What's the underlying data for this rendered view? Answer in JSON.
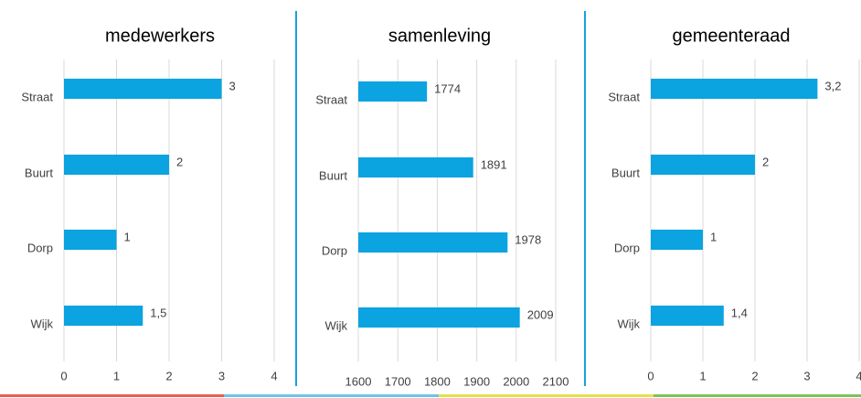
{
  "chart_data": [
    {
      "type": "bar",
      "orientation": "horizontal",
      "title": "medewerkers",
      "categories": [
        "Straat",
        "Buurt",
        "Dorp",
        "Wijk"
      ],
      "values": [
        3,
        2,
        1,
        1.5
      ],
      "value_labels": [
        "3",
        "2",
        "1",
        "1,5"
      ],
      "color": "#0ba3e0",
      "xlim": [
        0,
        4
      ],
      "xticks": [
        0,
        1,
        2,
        3,
        4
      ],
      "grid": true
    },
    {
      "type": "bar",
      "orientation": "horizontal",
      "title": "samenleving",
      "categories": [
        "Straat",
        "Buurt",
        "Dorp",
        "Wijk"
      ],
      "values": [
        1774,
        1891,
        1978,
        2009
      ],
      "color": "#0ba3e0",
      "xlim": [
        1600,
        2100
      ],
      "xticks": [
        1600,
        1700,
        1800,
        1900,
        2000,
        2100
      ],
      "grid": true
    },
    {
      "type": "bar",
      "orientation": "horizontal",
      "title": "gemeenteraad",
      "categories": [
        "Straat",
        "Buurt",
        "Dorp",
        "Wijk"
      ],
      "values": [
        3.2,
        2,
        1,
        1.4
      ],
      "value_labels": [
        "3,2",
        "2",
        "1",
        "1,4"
      ],
      "color": "#0ba3e0",
      "xlim": [
        0,
        4
      ],
      "xticks": [
        0,
        1,
        2,
        3,
        4
      ],
      "grid": true
    }
  ]
}
